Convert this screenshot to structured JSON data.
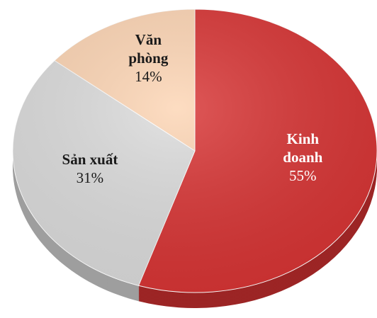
{
  "chart_data": {
    "type": "pie",
    "categories": [
      "Kinh doanh",
      "Sản xuất",
      "Văn phòng"
    ],
    "values": [
      55,
      31,
      14
    ],
    "value_labels": [
      "55%",
      "31%",
      "14%"
    ],
    "colors": [
      "#d83434",
      "#dcdcdc",
      "#fdd5b4"
    ],
    "label_colors": [
      "#ffffff",
      "#1a1a1a",
      "#1a1a1a"
    ]
  }
}
